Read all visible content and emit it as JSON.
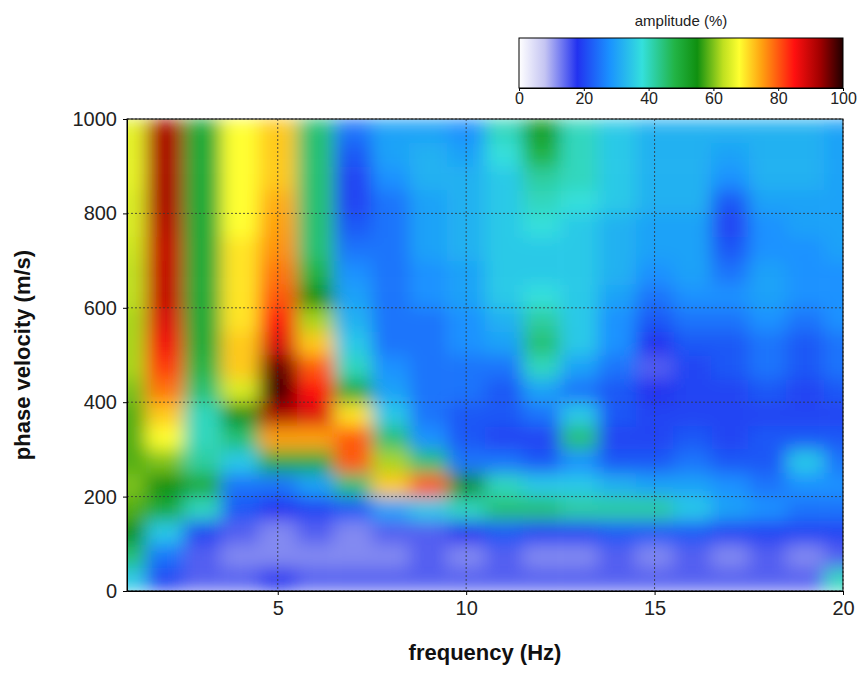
{
  "chart_data": {
    "type": "heatmap",
    "x_label": "frequency (Hz)",
    "y_label": "phase velocity (m/s)",
    "xlim": [
      1,
      20
    ],
    "ylim": [
      0,
      1000
    ],
    "xticks": [
      5,
      10,
      15,
      20
    ],
    "yticks": [
      0,
      200,
      400,
      600,
      800,
      1000
    ],
    "grid": true,
    "x": [
      1,
      2,
      3,
      4,
      5,
      6,
      7,
      8,
      9,
      10,
      11,
      12,
      13,
      14,
      15,
      16,
      17,
      18,
      19,
      20
    ],
    "y": [
      25,
      75,
      125,
      175,
      225,
      275,
      325,
      375,
      425,
      475,
      525,
      575,
      625,
      675,
      725,
      775,
      825,
      875,
      925,
      975
    ],
    "z": [
      [
        35,
        20,
        15,
        15,
        18,
        15,
        15,
        15,
        15,
        15,
        15,
        15,
        15,
        15,
        15,
        15,
        15,
        15,
        15,
        40
      ],
      [
        45,
        25,
        15,
        12,
        12,
        12,
        12,
        12,
        15,
        12,
        15,
        12,
        12,
        15,
        12,
        15,
        12,
        15,
        12,
        15
      ],
      [
        55,
        35,
        20,
        15,
        12,
        15,
        12,
        15,
        15,
        18,
        22,
        20,
        20,
        22,
        22,
        22,
        20,
        20,
        20,
        20
      ],
      [
        58,
        50,
        40,
        22,
        18,
        20,
        22,
        30,
        35,
        40,
        45,
        45,
        42,
        42,
        42,
        35,
        30,
        28,
        25,
        25
      ],
      [
        60,
        55,
        50,
        25,
        25,
        30,
        45,
        72,
        80,
        55,
        40,
        35,
        35,
        32,
        30,
        30,
        28,
        25,
        28,
        28
      ],
      [
        58,
        60,
        42,
        35,
        50,
        50,
        80,
        62,
        45,
        25,
        25,
        22,
        28,
        22,
        22,
        25,
        22,
        22,
        35,
        25
      ],
      [
        58,
        68,
        40,
        45,
        75,
        75,
        80,
        45,
        28,
        22,
        20,
        20,
        45,
        20,
        20,
        22,
        20,
        22,
        22,
        22
      ],
      [
        58,
        72,
        40,
        55,
        92,
        88,
        70,
        35,
        25,
        22,
        22,
        25,
        35,
        22,
        20,
        20,
        20,
        20,
        20,
        20
      ],
      [
        60,
        78,
        45,
        65,
        98,
        85,
        50,
        30,
        25,
        25,
        22,
        30,
        25,
        22,
        18,
        20,
        20,
        22,
        20,
        22
      ],
      [
        62,
        82,
        48,
        72,
        96,
        80,
        40,
        28,
        25,
        25,
        25,
        40,
        30,
        25,
        15,
        20,
        22,
        25,
        22,
        25
      ],
      [
        62,
        86,
        50,
        72,
        88,
        72,
        35,
        25,
        25,
        28,
        30,
        45,
        35,
        28,
        18,
        22,
        22,
        25,
        22,
        25
      ],
      [
        62,
        88,
        50,
        70,
        84,
        62,
        32,
        25,
        25,
        28,
        32,
        42,
        35,
        28,
        22,
        25,
        25,
        28,
        25,
        28
      ],
      [
        63,
        90,
        50,
        70,
        80,
        55,
        30,
        25,
        28,
        30,
        35,
        38,
        35,
        30,
        25,
        28,
        28,
        30,
        28,
        28
      ],
      [
        63,
        90,
        50,
        70,
        78,
        48,
        28,
        25,
        28,
        30,
        35,
        35,
        35,
        32,
        28,
        30,
        25,
        30,
        28,
        28
      ],
      [
        64,
        90,
        50,
        70,
        76,
        45,
        25,
        25,
        30,
        32,
        35,
        35,
        35,
        32,
        30,
        30,
        22,
        28,
        28,
        30
      ],
      [
        65,
        91,
        50,
        68,
        75,
        45,
        22,
        25,
        30,
        32,
        35,
        38,
        35,
        32,
        30,
        30,
        20,
        28,
        30,
        30
      ],
      [
        65,
        92,
        50,
        68,
        74,
        45,
        20,
        25,
        30,
        32,
        35,
        40,
        38,
        35,
        32,
        32,
        22,
        30,
        30,
        30
      ],
      [
        66,
        92,
        50,
        68,
        72,
        45,
        20,
        28,
        32,
        32,
        35,
        42,
        40,
        35,
        32,
        32,
        28,
        32,
        32,
        30
      ],
      [
        66,
        92,
        50,
        68,
        72,
        45,
        22,
        30,
        32,
        30,
        38,
        48,
        40,
        35,
        32,
        32,
        30,
        32,
        32,
        30
      ],
      [
        66,
        92,
        50,
        68,
        72,
        45,
        25,
        30,
        30,
        28,
        40,
        52,
        40,
        35,
        32,
        32,
        32,
        32,
        32,
        30
      ]
    ],
    "colorbar": {
      "label": "amplitude (%)",
      "range": [
        0,
        100
      ],
      "ticks": [
        0,
        20,
        40,
        60,
        80,
        100
      ]
    }
  }
}
